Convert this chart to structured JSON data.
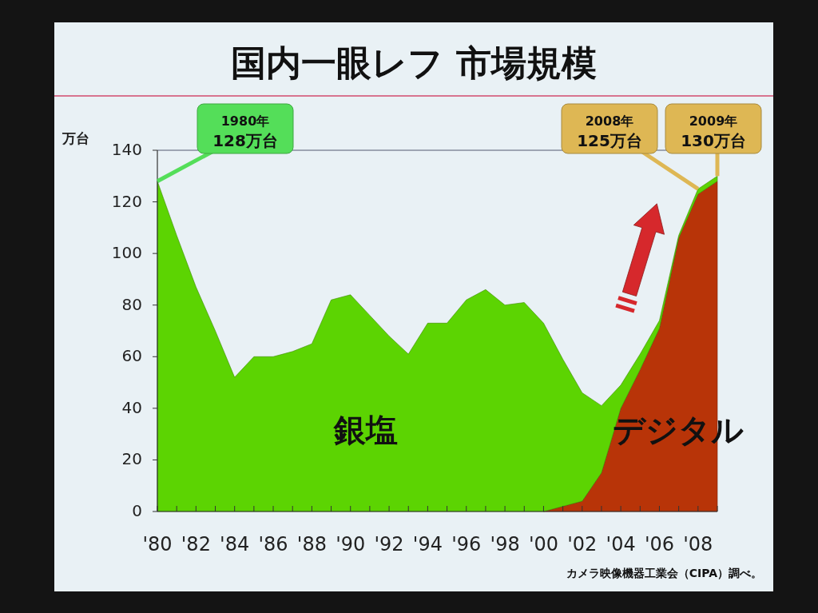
{
  "chart_data": {
    "type": "area",
    "stacked": true,
    "title": "国内一眼レフ 市場規模",
    "ylabel": "万台",
    "x": [
      1980,
      1981,
      1982,
      1983,
      1984,
      1985,
      1986,
      1987,
      1988,
      1989,
      1990,
      1991,
      1992,
      1993,
      1994,
      1995,
      1996,
      1997,
      1998,
      1999,
      2000,
      2001,
      2002,
      2003,
      2004,
      2005,
      2006,
      2007,
      2008,
      2009
    ],
    "series": [
      {
        "name": "デジタル",
        "color": "#b83408",
        "values": [
          null,
          null,
          null,
          null,
          null,
          null,
          null,
          null,
          null,
          null,
          null,
          null,
          null,
          null,
          null,
          null,
          null,
          null,
          null,
          null,
          0,
          2,
          4,
          15,
          40,
          55,
          71,
          106,
          123,
          128
        ]
      },
      {
        "name": "銀塩",
        "color": "#5cd402",
        "values": [
          128,
          107,
          87,
          70,
          52,
          60,
          60,
          62,
          65,
          82,
          84,
          76,
          68,
          61,
          73,
          73,
          82,
          86,
          80,
          81,
          73,
          57,
          42,
          26,
          9,
          6,
          3,
          1,
          2,
          2
        ]
      }
    ],
    "xlim": [
      1980,
      2009
    ],
    "xticks": [
      {
        "value": 1980,
        "label": "'80"
      },
      {
        "value": 1981,
        "label": null
      },
      {
        "value": 1982,
        "label": "'82"
      },
      {
        "value": 1983,
        "label": null
      },
      {
        "value": 1984,
        "label": "'84"
      },
      {
        "value": 1985,
        "label": null
      },
      {
        "value": 1986,
        "label": "'86"
      },
      {
        "value": 1987,
        "label": null
      },
      {
        "value": 1988,
        "label": "'88"
      },
      {
        "value": 1989,
        "label": null
      },
      {
        "value": 1990,
        "label": "'90"
      },
      {
        "value": 1991,
        "label": null
      },
      {
        "value": 1992,
        "label": "'92"
      },
      {
        "value": 1993,
        "label": null
      },
      {
        "value": 1994,
        "label": "'94"
      },
      {
        "value": 1995,
        "label": null
      },
      {
        "value": 1996,
        "label": "'96"
      },
      {
        "value": 1997,
        "label": null
      },
      {
        "value": 1998,
        "label": "'98"
      },
      {
        "value": 1999,
        "label": null
      },
      {
        "value": 2000,
        "label": "'00"
      },
      {
        "value": 2001,
        "label": null
      },
      {
        "value": 2002,
        "label": "'02"
      },
      {
        "value": 2003,
        "label": null
      },
      {
        "value": 2004,
        "label": "'04"
      },
      {
        "value": 2005,
        "label": null
      },
      {
        "value": 2006,
        "label": "'06"
      },
      {
        "value": 2007,
        "label": null
      },
      {
        "value": 2008,
        "label": "'08"
      },
      {
        "value": 2009,
        "label": null
      }
    ],
    "ylim": [
      0,
      140
    ],
    "yticks": [
      0,
      20,
      40,
      60,
      80,
      100,
      120,
      140
    ],
    "annotations": [
      {
        "text": "1980年\n128万台",
        "x": 1980,
        "y": 128
      },
      {
        "text": "2008年\n125万台",
        "x": 2008,
        "y": 125
      },
      {
        "text": "2009年\n130万台",
        "x": 2009,
        "y": 130
      },
      "カメラ映像機器工業会（CIPA）調べ。"
    ]
  }
}
